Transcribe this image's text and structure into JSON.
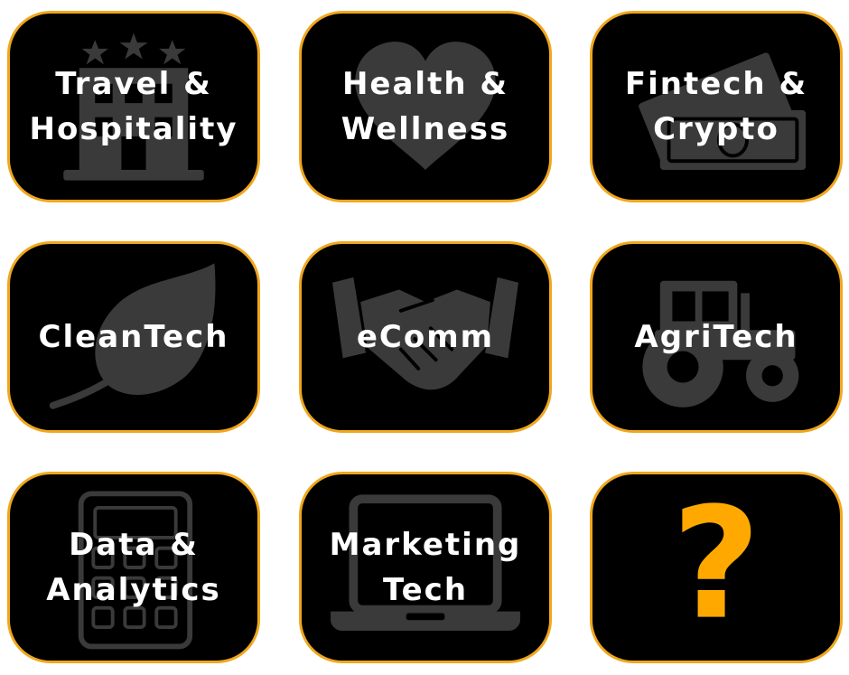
{
  "colors": {
    "tile_background": "#000000",
    "tile_border": "#f0a71c",
    "label": "#ffffff",
    "icon": "#3a3a3a",
    "question_mark": "#ffa900"
  },
  "tiles": [
    {
      "lines": [
        "Travel &",
        "Hospitality"
      ],
      "icon": "hotel-icon"
    },
    {
      "lines": [
        "Health &",
        "Wellness"
      ],
      "icon": "heart-icon"
    },
    {
      "lines": [
        "Fintech &",
        "Crypto"
      ],
      "icon": "money-icon"
    },
    {
      "lines": [
        "CleanTech"
      ],
      "icon": "leaf-icon"
    },
    {
      "lines": [
        "eComm"
      ],
      "icon": "handshake-icon"
    },
    {
      "lines": [
        "AgriTech"
      ],
      "icon": "tractor-icon"
    },
    {
      "lines": [
        "Data &",
        "Analytics"
      ],
      "icon": "calculator-icon"
    },
    {
      "lines": [
        "Marketing",
        "Tech"
      ],
      "icon": "laptop-icon"
    },
    {
      "symbol": "?",
      "icon": "question-mark-icon"
    }
  ]
}
